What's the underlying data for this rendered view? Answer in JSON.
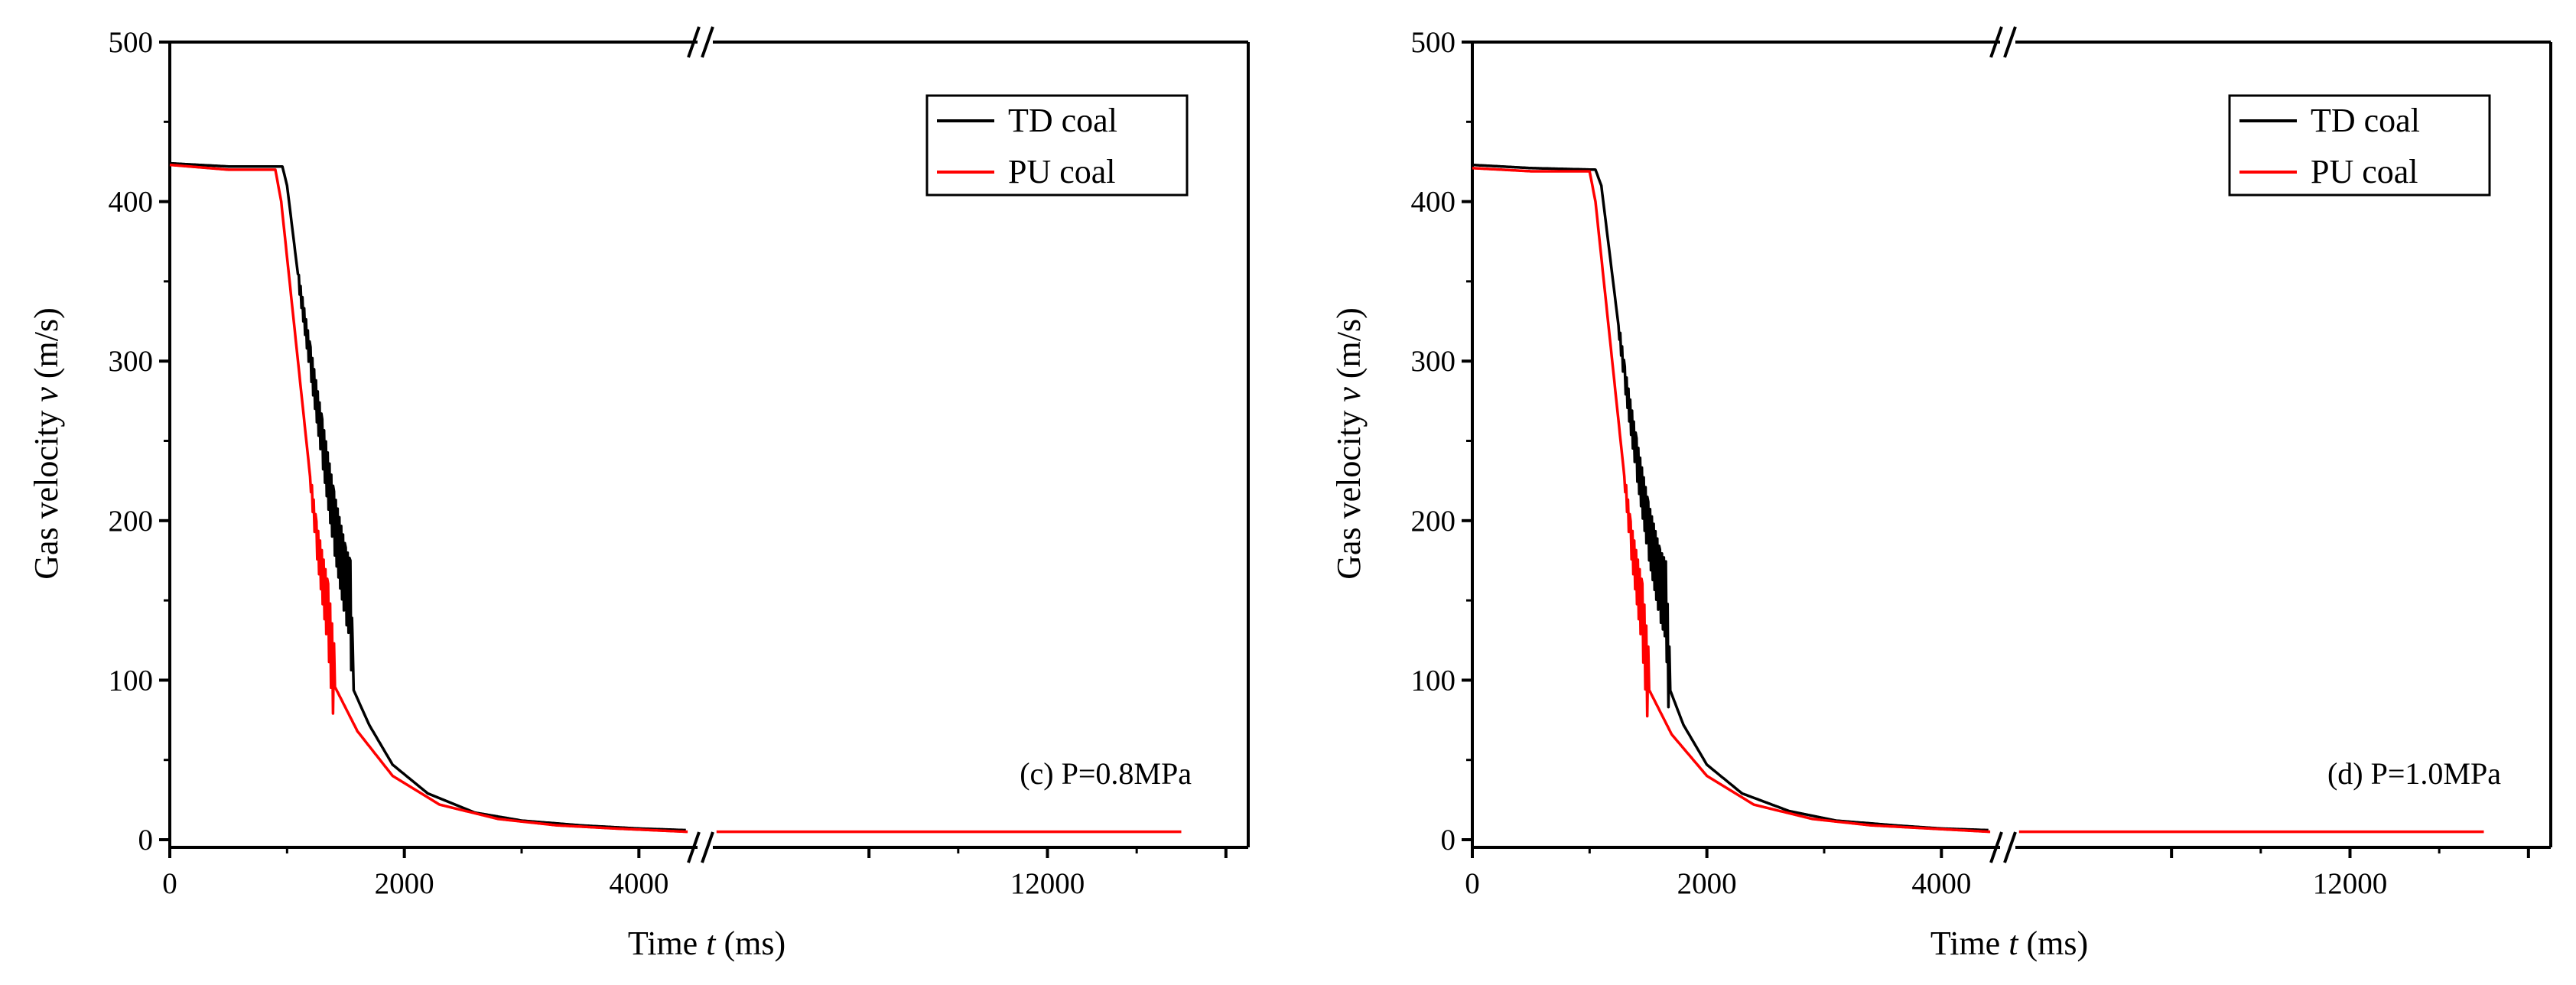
{
  "chart_data": [
    {
      "type": "line",
      "panel": "c",
      "annotation": "(c) P=0.8MPa",
      "xlabel_prefix": "Time ",
      "xlabel_var": "t",
      "xlabel_unit": " (ms)",
      "ylabel_prefix": "Gas velocity ",
      "ylabel_var": "v",
      "ylabel_unit": " (m/s)",
      "ylim": [
        0,
        500
      ],
      "yticks": [
        "0",
        "100",
        "200",
        "300",
        "400",
        "500"
      ],
      "axis_break": true,
      "xlim_left": [
        0,
        4500
      ],
      "xlim_right": [
        4500,
        16500
      ],
      "xticks": [
        "0",
        "2000",
        "4000",
        "12000"
      ],
      "legend_position": "top-right",
      "series": [
        {
          "name": "TD coal",
          "color": "#000000",
          "x": [
            0,
            500,
            960,
            1000,
            1100,
            1200,
            1300,
            1400,
            1500,
            1540,
            1560,
            1700,
            1900,
            2200,
            2600,
            3000,
            3500,
            4000,
            4400
          ],
          "y": [
            424,
            422,
            422,
            410,
            350,
            300,
            250,
            200,
            160,
            150,
            95,
            72,
            47,
            29,
            17,
            12,
            9,
            7,
            6
          ],
          "noise_x": [
            1100,
            1560
          ]
        },
        {
          "name": "PU coal",
          "color": "#ff0000",
          "x": [
            0,
            500,
            900,
            950,
            1050,
            1150,
            1250,
            1350,
            1400,
            1600,
            1900,
            2300,
            2800,
            3300,
            3800,
            4400,
            4700,
            9000,
            14000,
            15000
          ],
          "y": [
            423,
            420,
            420,
            400,
            330,
            260,
            190,
            140,
            97,
            68,
            40,
            22,
            13,
            9,
            7,
            5,
            5,
            5,
            5,
            5
          ],
          "noise_x": [
            1200,
            1400
          ]
        }
      ]
    },
    {
      "type": "line",
      "panel": "d",
      "annotation": "(d) P=1.0MPa",
      "xlabel_prefix": "Time ",
      "xlabel_var": "t",
      "xlabel_unit": " (ms)",
      "ylabel_prefix": "Gas velocity ",
      "ylabel_var": "v",
      "ylabel_unit": " (m/s)",
      "ylim": [
        0,
        500
      ],
      "yticks": [
        "0",
        "100",
        "200",
        "300",
        "400",
        "500"
      ],
      "axis_break": true,
      "xlim_left": [
        0,
        4500
      ],
      "xlim_right": [
        4500,
        16500
      ],
      "xticks": [
        "0",
        "2000",
        "4000",
        "12000"
      ],
      "legend_position": "top-right",
      "series": [
        {
          "name": "TD coal",
          "color": "#000000",
          "x": [
            0,
            500,
            1050,
            1100,
            1200,
            1300,
            1400,
            1500,
            1600,
            1650,
            1680,
            1800,
            2000,
            2300,
            2700,
            3100,
            3600,
            4000,
            4400
          ],
          "y": [
            423,
            421,
            420,
            410,
            350,
            290,
            240,
            195,
            160,
            150,
            95,
            72,
            47,
            29,
            18,
            12,
            9,
            7,
            6
          ],
          "noise_x": [
            1250,
            1680
          ]
        },
        {
          "name": "PU coal",
          "color": "#ff0000",
          "x": [
            0,
            500,
            1000,
            1050,
            1150,
            1250,
            1350,
            1450,
            1500,
            1700,
            2000,
            2400,
            2900,
            3400,
            3900,
            4400,
            4700,
            9000,
            14000,
            15000
          ],
          "y": [
            421,
            419,
            419,
            400,
            330,
            260,
            190,
            140,
            95,
            66,
            40,
            22,
            13,
            9,
            7,
            5,
            5,
            5,
            5,
            5
          ],
          "noise_x": [
            1300,
            1500
          ]
        }
      ]
    }
  ]
}
